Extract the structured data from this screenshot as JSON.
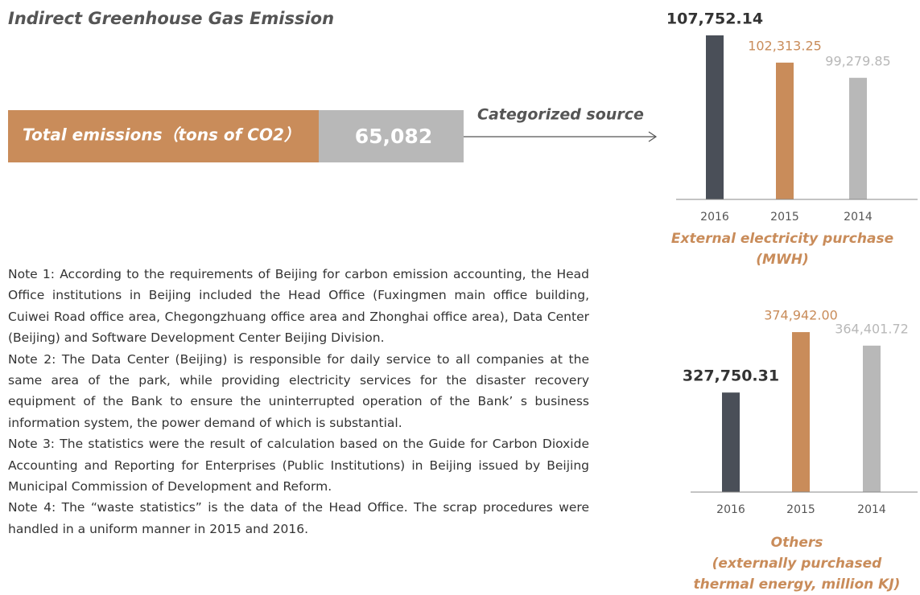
{
  "title": "Indirect Greenhouse Gas Emission",
  "total": {
    "label": "Total emissions（tons of CO2）",
    "value": "65,082"
  },
  "arrow_label": "Categorized source",
  "notes": [
    "Note 1: According to the requirements of Beijing for carbon emission accounting, the Head Office institutions in Beijing included the Head Office (Fuxingmen main office building, Cuiwei Road office area, Chegongzhuang office area and Zhonghai office area), Data Center (Beijing) and Software Development Center Beijing Division.",
    "Note 2: The Data Center (Beijing) is responsible for daily service to all companies at the same area of the park, while providing electricity services for the disaster recovery equipment of the Bank to ensure the uninterrupted operation of the Bank’ s business information system, the power demand of which is substantial.",
    "Note 3: The statistics were the result of calculation based on the Guide for Carbon Dioxide Accounting and Reporting for Enterprises (Public Institutions) in Beijing issued by Beijing Municipal Commission of Development and Reform.",
    "Note 4: The “waste statistics” is the data of the Head Office. The scrap procedures were handled in a uniform manner in 2015 and 2016."
  ],
  "chart_data": [
    {
      "type": "bar",
      "title_lines": [
        "External electricity purchase",
        "(MWH)"
      ],
      "categories": [
        "2016",
        "2015",
        "2014"
      ],
      "values": [
        107752.14,
        102313.25,
        99279.85
      ],
      "value_labels": [
        "107,752.14",
        "102,313.25",
        "99,279.85"
      ],
      "colors": [
        "#4a4f58",
        "#c98c5a",
        "#b8b8b8"
      ],
      "ylim": [
        75000,
        110000
      ]
    },
    {
      "type": "bar",
      "title_lines": [
        "Others",
        "(externally purchased",
        "thermal energy, million KJ)"
      ],
      "categories": [
        "2016",
        "2015",
        "2014"
      ],
      "values": [
        327750.31,
        374942.0,
        364401.72
      ],
      "value_labels": [
        "327,750.31",
        "374,942.00",
        "364,401.72"
      ],
      "colors": [
        "#4a4f58",
        "#c98c5a",
        "#b8b8b8"
      ],
      "ylim": [
        250000,
        380000
      ]
    }
  ]
}
